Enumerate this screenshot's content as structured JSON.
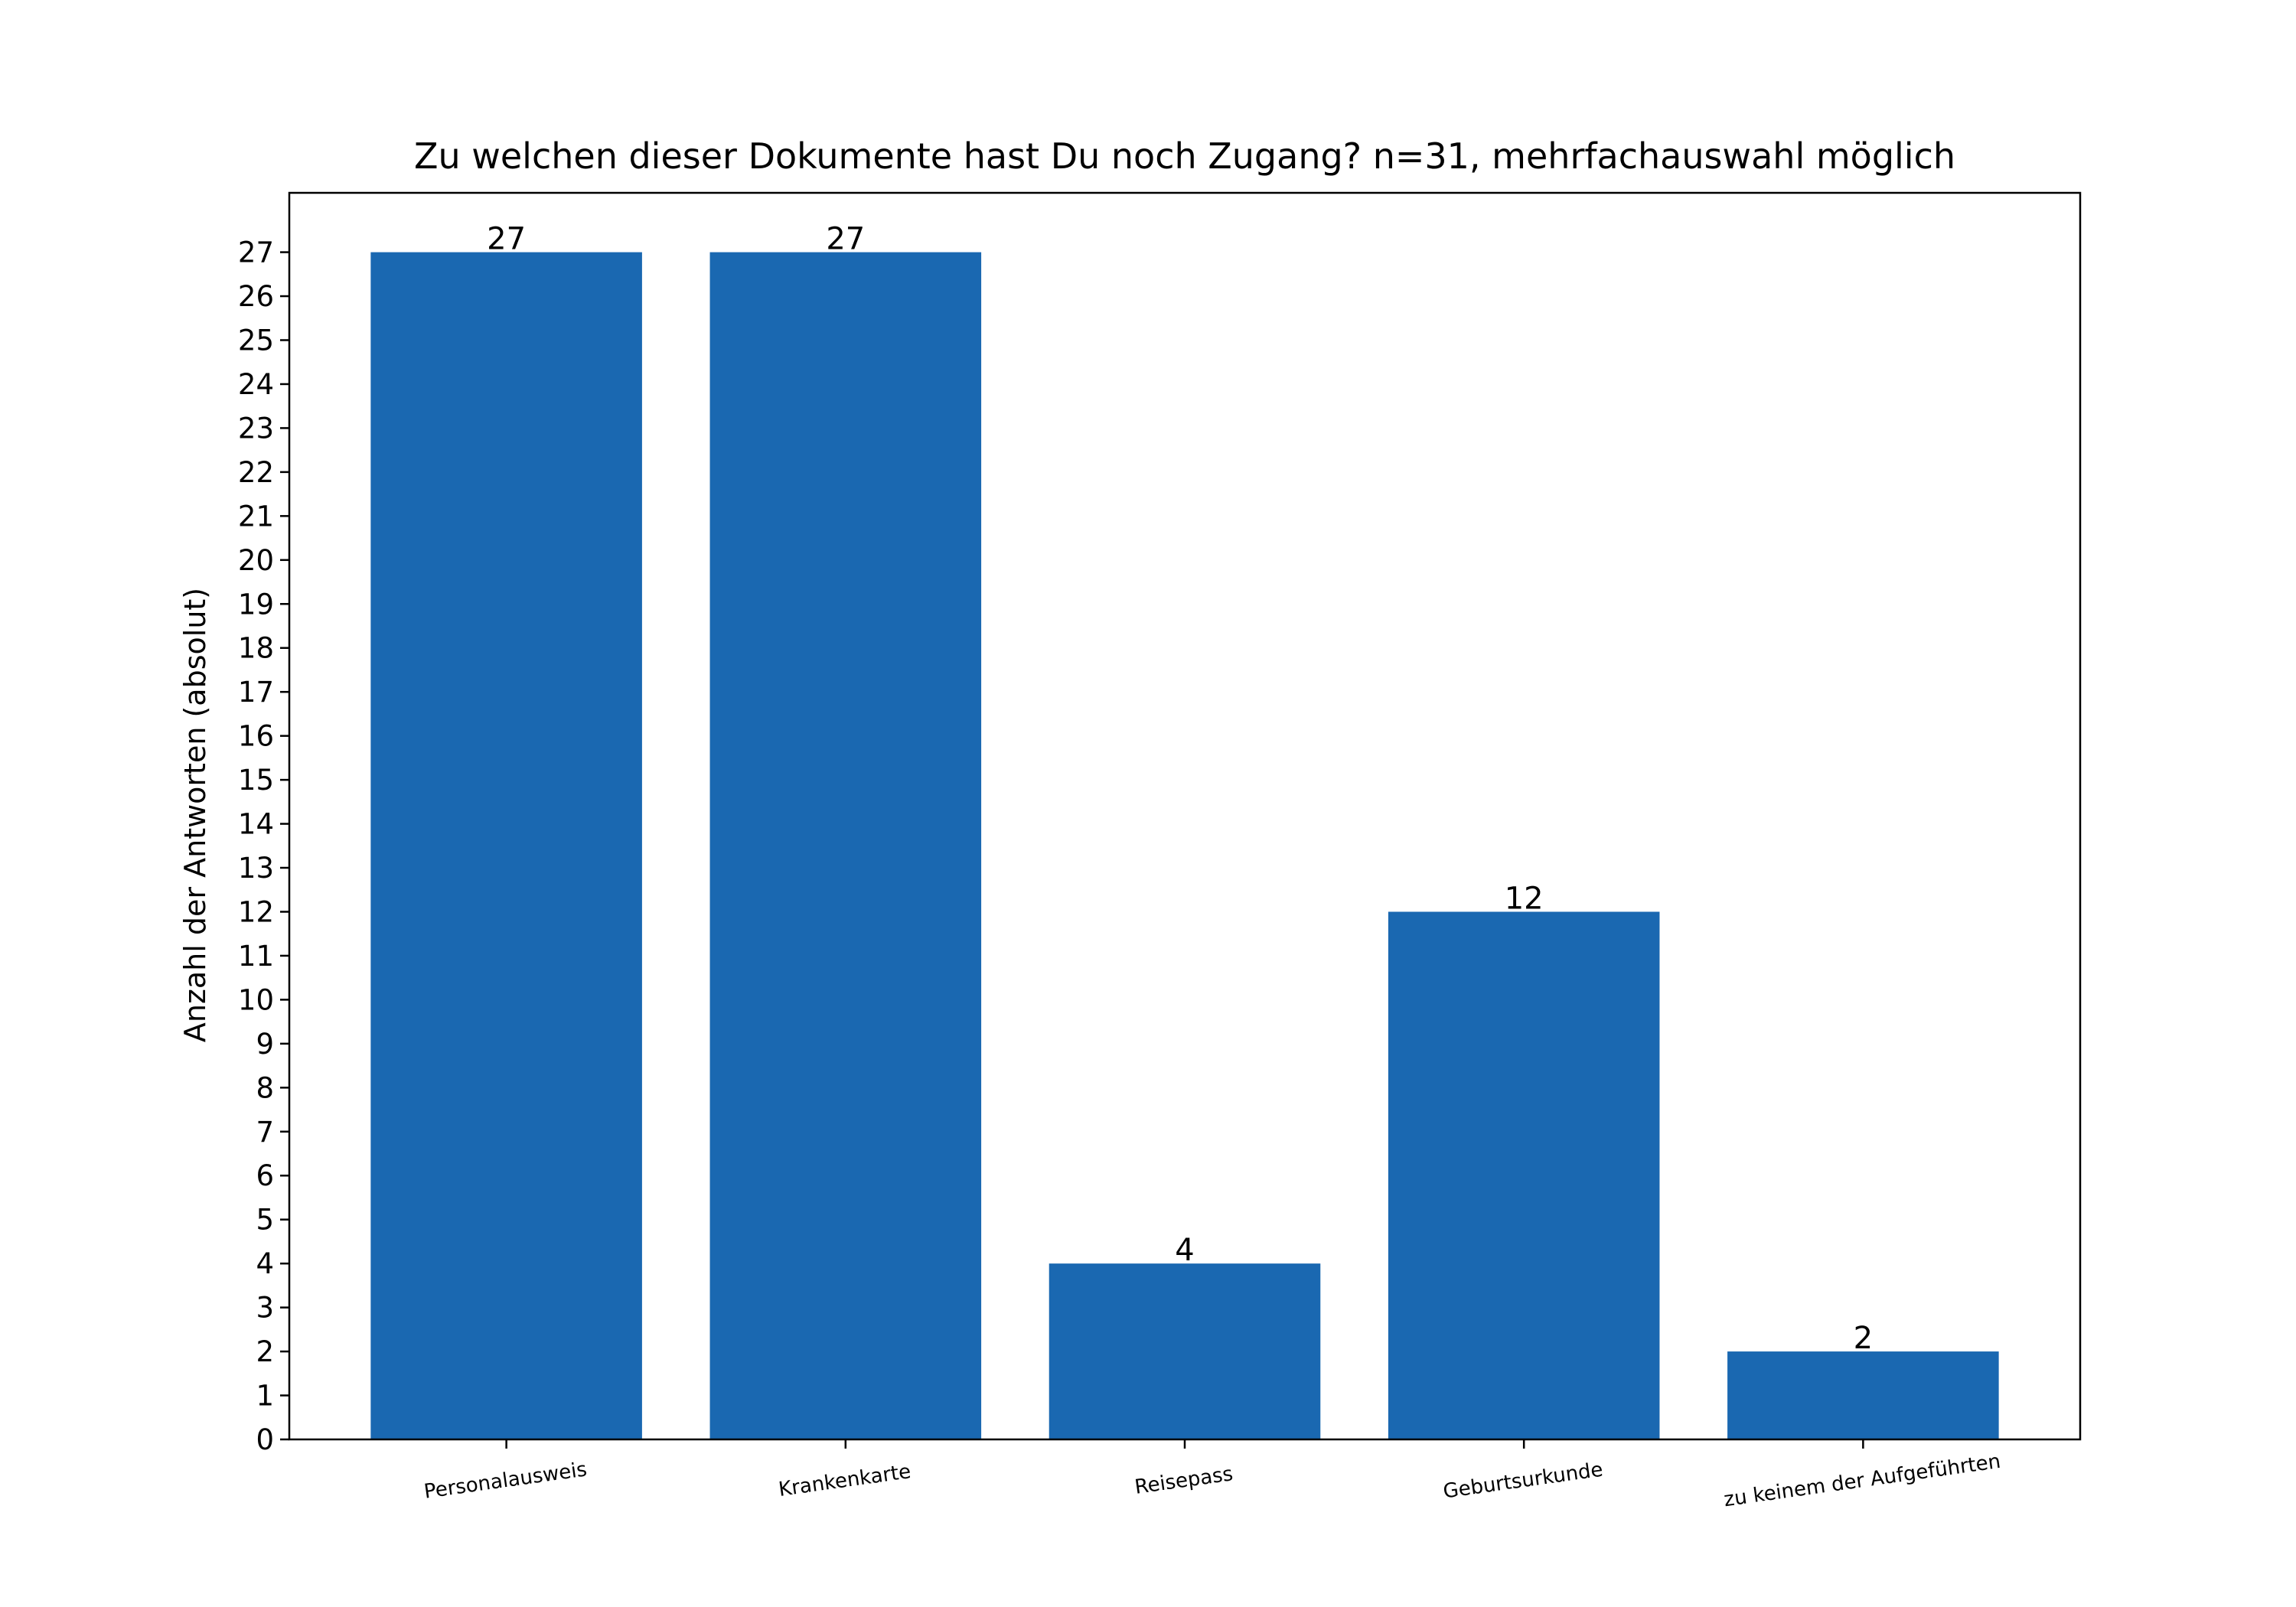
{
  "chart_data": {
    "type": "bar",
    "title": "Zu welchen dieser Dokumente hast Du noch Zugang? n=31, mehrfachauswahl möglich",
    "xlabel": "",
    "ylabel": "Anzahl der Antworten (absolut)",
    "categories": [
      "Personalausweis",
      "Krankenkarte",
      "Reisepass",
      "Geburtsurkunde",
      "zu keinem der Aufgeführten"
    ],
    "values": [
      27,
      27,
      4,
      12,
      2
    ],
    "ylim": [
      0,
      28.35
    ],
    "yticks": [
      0,
      1,
      2,
      3,
      4,
      5,
      6,
      7,
      8,
      9,
      10,
      11,
      12,
      13,
      14,
      15,
      16,
      17,
      18,
      19,
      20,
      21,
      22,
      23,
      24,
      25,
      26,
      27
    ],
    "bar_color": "#1a68b1",
    "grid": false,
    "data_labels": true
  }
}
